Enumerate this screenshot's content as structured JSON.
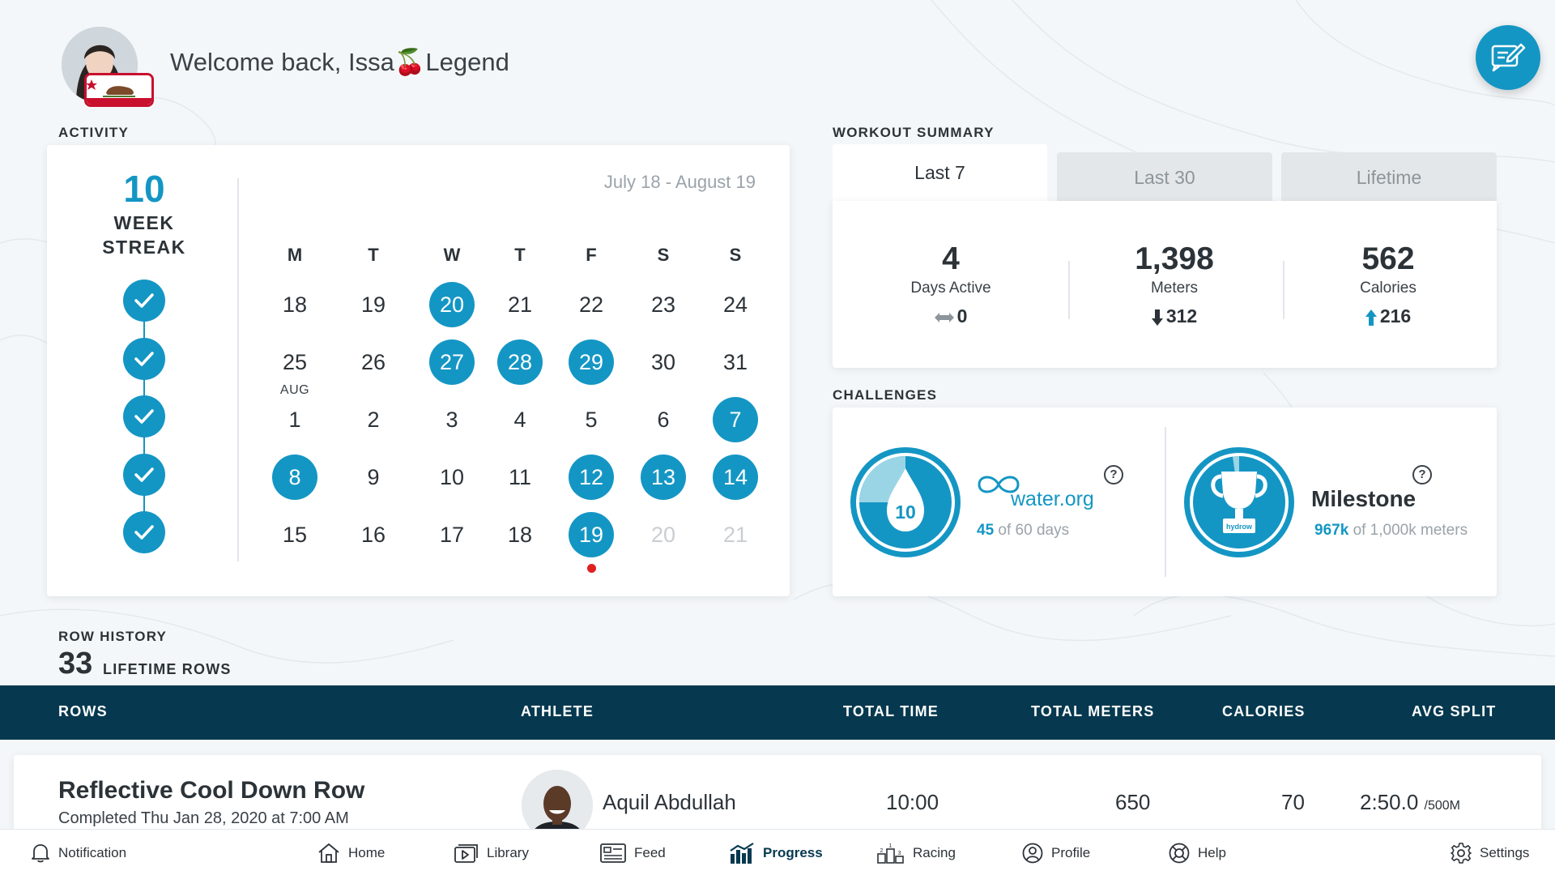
{
  "header": {
    "welcome": "Welcome back, Issa🍒Legend"
  },
  "activity": {
    "section_label": "ACTIVITY",
    "streak_number": "10",
    "streak_line1": "WEEK",
    "streak_line2": "STREAK",
    "streak_checks": 5,
    "date_range": "July 18 - August 19",
    "weekdays": [
      "M",
      "T",
      "W",
      "T",
      "F",
      "S",
      "S"
    ],
    "month_marker": "AUG",
    "weeks": [
      [
        {
          "d": "18"
        },
        {
          "d": "19"
        },
        {
          "d": "20",
          "hl": true
        },
        {
          "d": "21"
        },
        {
          "d": "22"
        },
        {
          "d": "23"
        },
        {
          "d": "24"
        }
      ],
      [
        {
          "d": "25"
        },
        {
          "d": "26"
        },
        {
          "d": "27",
          "hl": true
        },
        {
          "d": "28",
          "hl": true
        },
        {
          "d": "29",
          "hl": true
        },
        {
          "d": "30"
        },
        {
          "d": "31"
        }
      ],
      [
        {
          "d": "1"
        },
        {
          "d": "2"
        },
        {
          "d": "3"
        },
        {
          "d": "4"
        },
        {
          "d": "5"
        },
        {
          "d": "6"
        },
        {
          "d": "7",
          "hl": true
        }
      ],
      [
        {
          "d": "8",
          "hl": true
        },
        {
          "d": "9"
        },
        {
          "d": "10"
        },
        {
          "d": "11"
        },
        {
          "d": "12",
          "hl": true
        },
        {
          "d": "13",
          "hl": true
        },
        {
          "d": "14",
          "hl": true
        }
      ],
      [
        {
          "d": "15"
        },
        {
          "d": "16"
        },
        {
          "d": "17"
        },
        {
          "d": "18"
        },
        {
          "d": "19",
          "hl": true,
          "today": true
        },
        {
          "d": "20",
          "dim": true
        },
        {
          "d": "21",
          "dim": true
        }
      ]
    ]
  },
  "workout_summary": {
    "section_label": "WORKOUT SUMMARY",
    "tabs": [
      "Last 7",
      "Last 30",
      "Lifetime"
    ],
    "active_tab": "Last 7",
    "stats": [
      {
        "value": "4",
        "label": "Days Active",
        "delta": "0",
        "direction": "neutral"
      },
      {
        "value": "1,398",
        "label": "Meters",
        "delta": "312",
        "direction": "down"
      },
      {
        "value": "562",
        "label": "Calories",
        "delta": "216",
        "direction": "up"
      }
    ]
  },
  "challenges": {
    "section_label": "CHALLENGES",
    "items": [
      {
        "badge_number": "10",
        "logo_text": "water.org",
        "progress_value": "45",
        "progress_rest": "of 60 days",
        "fraction": 0.75
      },
      {
        "title": "Milestone",
        "badge_text": "hydrow",
        "progress_value": "967k",
        "progress_rest": "of 1,000k meters",
        "fraction": 0.967
      }
    ]
  },
  "row_history": {
    "section_label": "ROW HISTORY",
    "lifetime_count": "33",
    "lifetime_label": "LIFETIME ROWS",
    "columns": [
      "ROWS",
      "ATHLETE",
      "TOTAL TIME",
      "TOTAL METERS",
      "CALORIES",
      "AVG SPLIT"
    ],
    "rows": [
      {
        "title": "Reflective Cool Down Row",
        "completed": "Completed Thu Jan 28, 2020 at 7:00 AM",
        "athlete": "Aquil Abdullah",
        "total_time": "10:00",
        "total_meters": "650",
        "calories": "70",
        "avg_split": "2:50.0",
        "avg_split_unit": "/500M"
      }
    ]
  },
  "nav": {
    "items": [
      {
        "label": "Notification",
        "icon": "bell-icon"
      },
      {
        "label": "Home",
        "icon": "home-icon"
      },
      {
        "label": "Library",
        "icon": "library-icon"
      },
      {
        "label": "Feed",
        "icon": "feed-icon"
      },
      {
        "label": "Progress",
        "icon": "progress-icon",
        "active": true
      },
      {
        "label": "Racing",
        "icon": "racing-icon"
      },
      {
        "label": "Profile",
        "icon": "profile-icon"
      },
      {
        "label": "Help",
        "icon": "help-icon"
      },
      {
        "label": "Settings",
        "icon": "settings-icon"
      }
    ]
  },
  "colors": {
    "accent": "#1496c4",
    "navy": "#06394f",
    "background": "#f4f7f9",
    "today_dot": "#e02020"
  }
}
